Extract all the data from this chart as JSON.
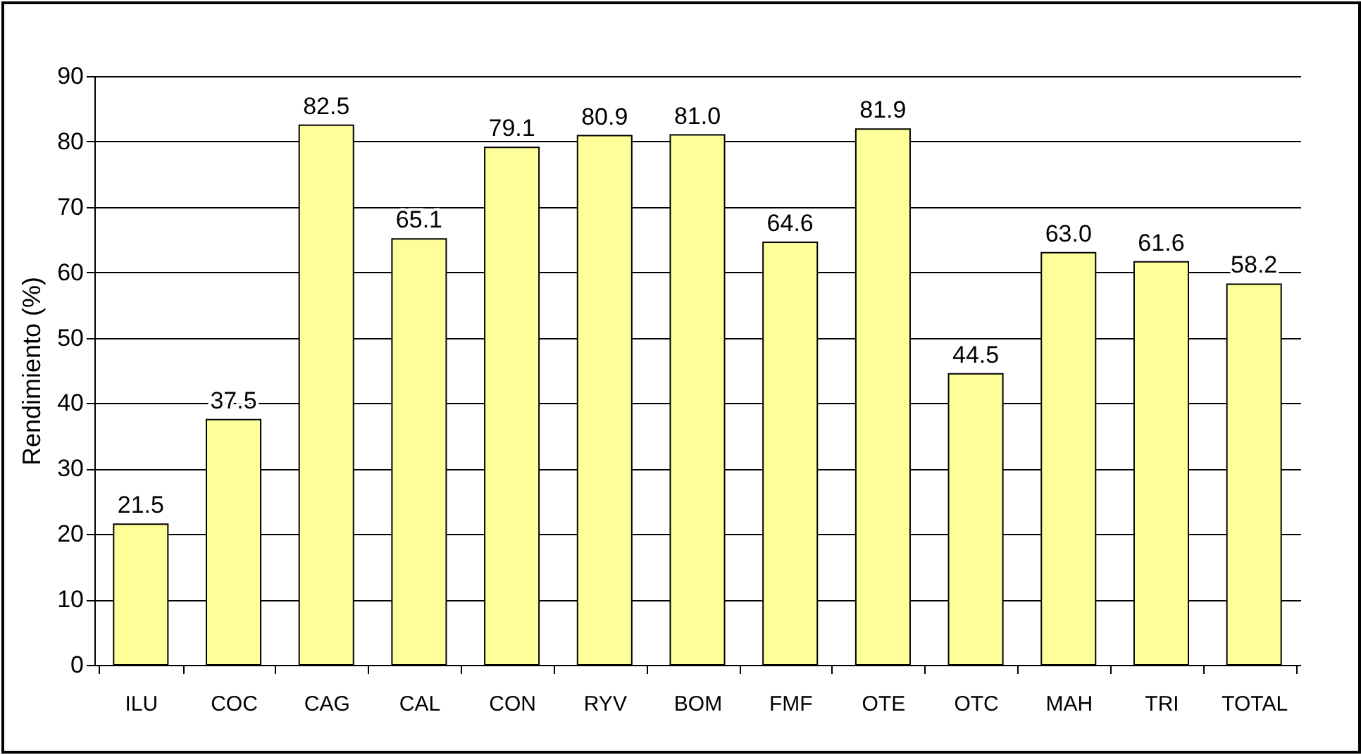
{
  "chart_data": {
    "type": "bar",
    "ylabel": "Rendimiento (%)",
    "categories": [
      "ILU",
      "COC",
      "CAG",
      "CAL",
      "CON",
      "RYV",
      "BOM",
      "FMF",
      "OTE",
      "OTC",
      "MAH",
      "TRI",
      "TOTAL"
    ],
    "values": [
      21.5,
      37.5,
      82.5,
      65.1,
      79.1,
      80.9,
      81.0,
      64.6,
      81.9,
      44.5,
      63.0,
      61.6,
      58.2
    ],
    "value_labels": [
      "21.5",
      "37.5",
      "82.5",
      "65.1",
      "79.1",
      "80.9",
      "81.0",
      "64.6",
      "81.9",
      "44.5",
      "63.0",
      "61.6",
      "58.2"
    ],
    "color": "#ffff99",
    "ylim": [
      0,
      90
    ],
    "yticks": [
      0,
      10,
      20,
      30,
      40,
      50,
      60,
      70,
      80,
      90
    ],
    "grid": "y"
  }
}
